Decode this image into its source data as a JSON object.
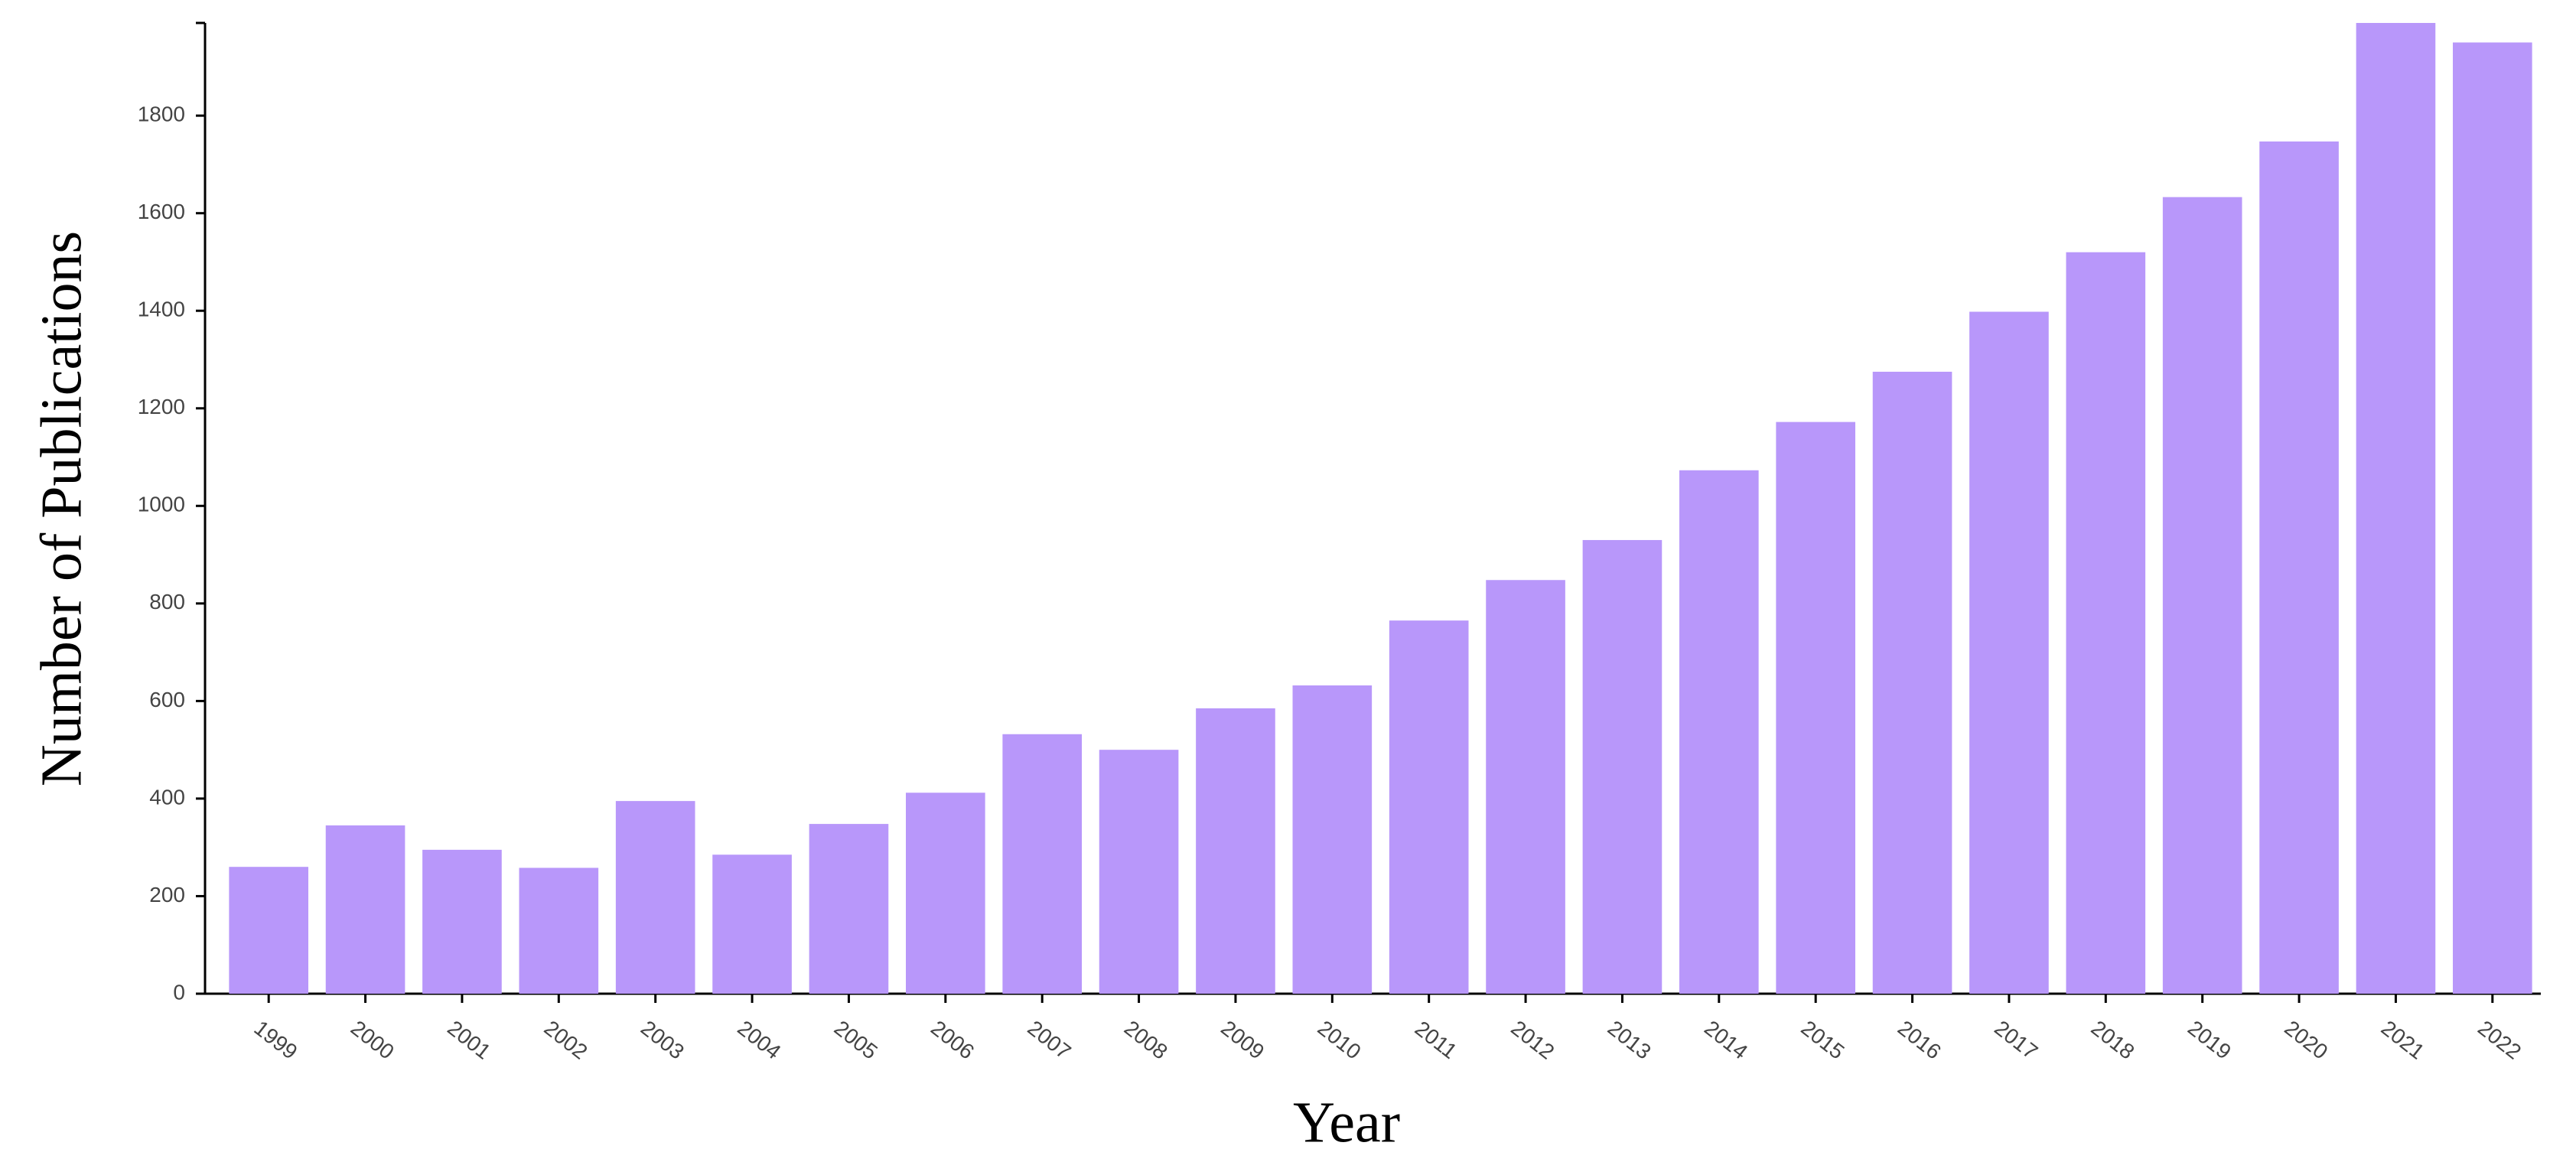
{
  "chart_data": {
    "type": "bar",
    "x_label": "Year",
    "y_label": "Number of  Publications",
    "categories": [
      "1999",
      "2000",
      "2001",
      "2002",
      "2003",
      "2004",
      "2005",
      "2006",
      "2007",
      "2008",
      "2009",
      "2010",
      "2011",
      "2012",
      "2013",
      "2014",
      "2015",
      "2016",
      "2017",
      "2018",
      "2019",
      "2020",
      "2021",
      "2022"
    ],
    "values": [
      260,
      345,
      295,
      258,
      395,
      285,
      348,
      412,
      532,
      500,
      585,
      632,
      765,
      848,
      930,
      1073,
      1172,
      1275,
      1398,
      1520,
      1633,
      1747,
      1990,
      1950
    ],
    "color": "#b897fa",
    "ylim": [
      0,
      1990
    ],
    "yticks": [
      0,
      200,
      400,
      600,
      800,
      1000,
      1200,
      1400,
      1600,
      1800
    ],
    "grid": false
  }
}
